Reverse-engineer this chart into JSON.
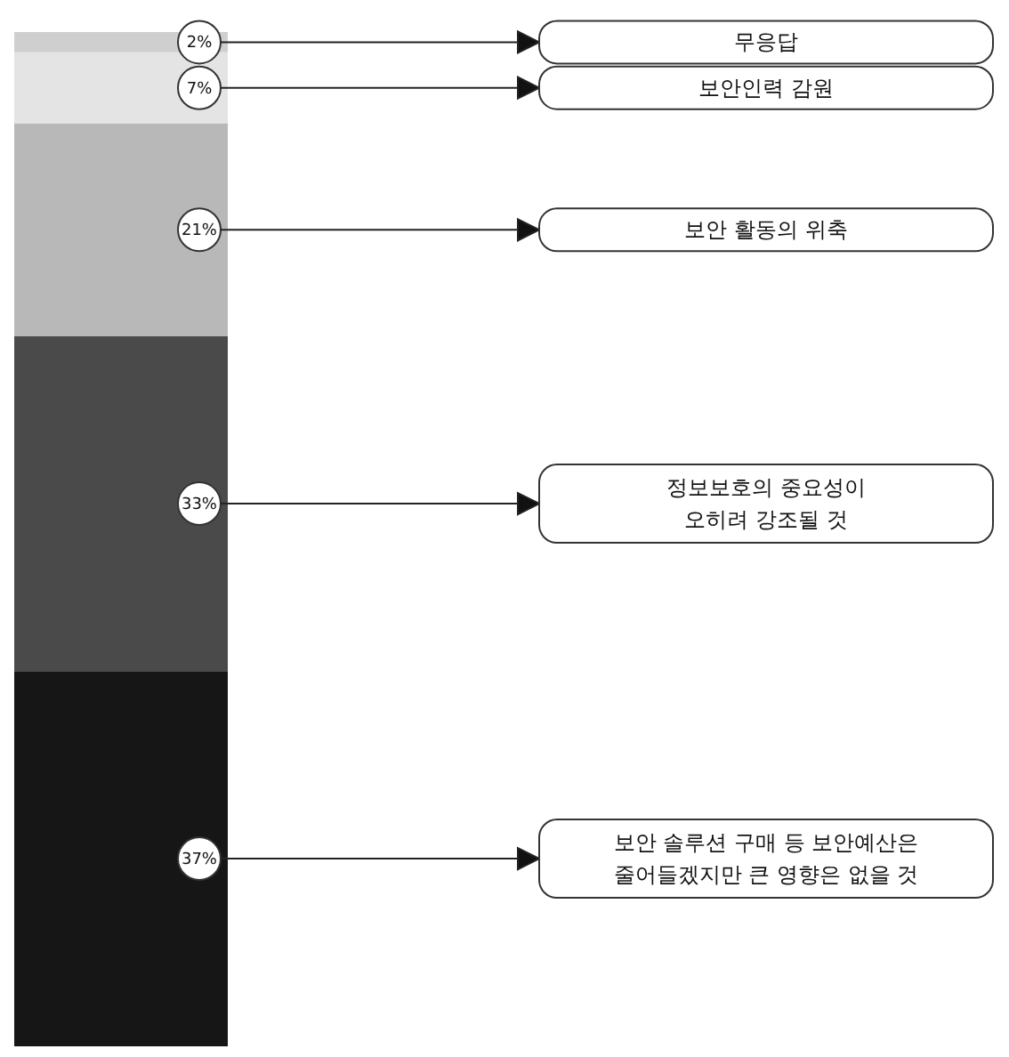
{
  "chart_data": {
    "type": "bar",
    "stacked": true,
    "categories": [
      null
    ],
    "legend": "right",
    "series": [
      {
        "name": "보안 솔루션 구매 등 보안예산은 줄어들겠지만 큰 영향은 없을 것",
        "color": "#161616",
        "values": [
          37
        ],
        "value_labels": [
          "37%"
        ]
      },
      {
        "name": "정보보호의 중요성이 오히려 강조될 것",
        "color": "#4a4a4a",
        "values": [
          33
        ],
        "value_labels": [
          "33%"
        ]
      },
      {
        "name": "보안 활동의 위축",
        "color": "#b8b8b8",
        "values": [
          21
        ],
        "value_labels": [
          "21%"
        ]
      },
      {
        "name": "보안인력 감원",
        "color": "#e4e4e4",
        "values": [
          7
        ],
        "value_labels": [
          "7%"
        ]
      },
      {
        "name": "무응답",
        "color": "#cfcfcf",
        "values": [
          2
        ],
        "value_labels": [
          "2%"
        ]
      }
    ]
  }
}
